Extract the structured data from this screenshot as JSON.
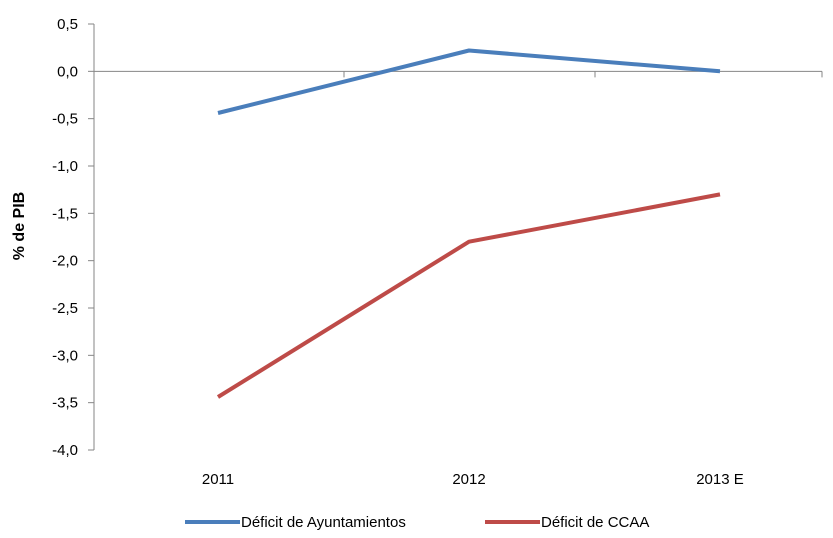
{
  "chart_data": {
    "type": "line",
    "categories": [
      "2011",
      "2012",
      "2013 E"
    ],
    "series": [
      {
        "name": "Déficit de Ayuntamientos",
        "color": "#4a7ebb",
        "values": [
          -0.44,
          0.22,
          0.0
        ]
      },
      {
        "name": "Déficit de CCAA",
        "color": "#be4b48",
        "values": [
          -3.44,
          -1.8,
          -1.3
        ]
      }
    ],
    "ylabel": "% de PIB",
    "xlabel": "",
    "ylim": [
      -4.0,
      0.5
    ],
    "yticks": [
      "0,5",
      "0,0",
      "-0,5",
      "-1,0",
      "-1,5",
      "-2,0",
      "-2,5",
      "-3,0",
      "-3,5",
      "-4,0"
    ],
    "ytick_values": [
      0.5,
      0.0,
      -0.5,
      -1.0,
      -1.5,
      -2.0,
      -2.5,
      -3.0,
      -3.5,
      -4.0
    ],
    "grid": false,
    "legend_position": "bottom"
  }
}
